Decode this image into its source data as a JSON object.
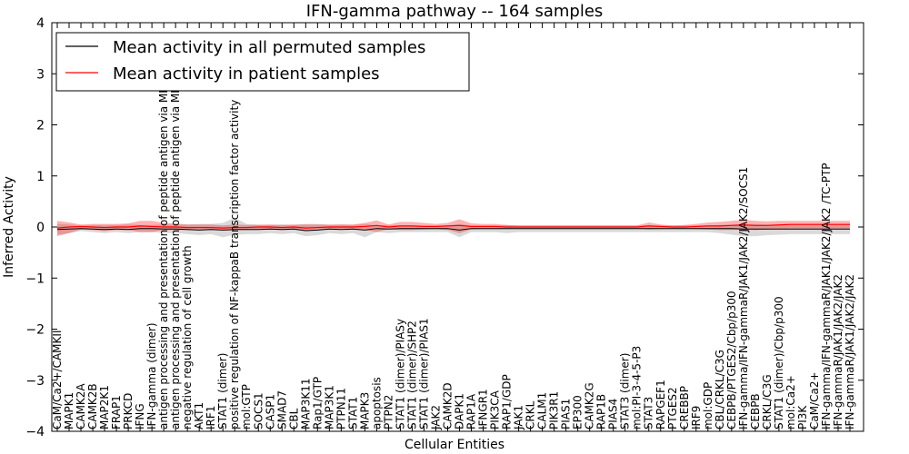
{
  "chart_data": {
    "type": "line",
    "title": "IFN-gamma pathway -- 164 samples",
    "xlabel": "Cellular Entities",
    "ylabel": "Inferred Activity",
    "ylim": [
      -4,
      4
    ],
    "yticks": [
      4,
      3,
      2,
      1,
      0,
      -1,
      -2,
      -3,
      -4
    ],
    "ytick_labels": [
      "4",
      "3",
      "2",
      "1",
      "0",
      "−1",
      "−2",
      "−3",
      "−4"
    ],
    "legend": {
      "placement": "top-left",
      "entries": [
        {
          "label": "Mean activity in all permuted samples",
          "color": "#000000"
        },
        {
          "label": "Mean activity in patient samples",
          "color": "#ff0000"
        }
      ]
    },
    "categories": [
      "CaM/Ca2+/CAMKII",
      "MAPK1",
      "CAMK2A",
      "CAMK2B",
      "MAP2K1",
      "FRAP1",
      "PRKCD",
      "IFNG",
      "IFN-gamma (dimer)",
      "antigen processing and presentation of peptide antigen via MHC class I",
      "antigen processing and presentation of peptide antigen via MHC class II",
      "negative regulation of cell growth",
      "AKT1",
      "IRF1",
      "STAT1 (dimer)",
      "positive regulation of NF-kappaB transcription factor activity",
      "mol:GTP",
      "SOCS1",
      "CASP1",
      "SMAD7",
      "CBL",
      "MAP3K11",
      "Rap1/GTP",
      "MAP3K1",
      "PTPN11",
      "STAT1",
      "MAPK3",
      "apoptosis",
      "PTPN2",
      "STAT1 (dimer)/PIASy",
      "STAT1 (dimer)/SHP2",
      "STAT1 (dimer)/PIAS1",
      "JAK2",
      "CAMK2D",
      "DAPK1",
      "RAP1A",
      "IFNGR1",
      "PIK3CA",
      "RAP1/GDP",
      "JAK1",
      "CRKL",
      "CALM1",
      "PIK3R1",
      "PIAS1",
      "EP300",
      "CAMK2G",
      "RAP1B",
      "PIAS4",
      "STAT3 (dimer)",
      "mol:PI-3-4-5-P3",
      "STAT3",
      "RAPGEF1",
      "PTGES2",
      "CREBBP",
      "IRF9",
      "mol:GDP",
      "CBL/CRKL/C3G",
      "CEBPB/PTGES2/Cbp/p300",
      "IFN-gamma/IFN-gammaR/JAK1/JAK2/JAK2/SOCS1",
      "CEBPB",
      "CRKL/C3G",
      "STAT1 (dimer)/Cbp/p300",
      "mol:Ca2+",
      "PI3K",
      "CaM/Ca2+",
      "IFN-gamma/IFN-gammaR/JAK1/JAK2/JAK2  /TC-PTP",
      "IFN-gammaR/JAK1/JAK2/JAK2",
      "IFN-gammaR/JAK1/JAK2/JAK2"
    ],
    "series": [
      {
        "name": "Mean activity in all permuted samples",
        "color": "#000000",
        "values": [
          -0.05,
          -0.04,
          -0.03,
          -0.04,
          -0.05,
          -0.04,
          -0.05,
          -0.03,
          -0.03,
          -0.04,
          -0.04,
          -0.05,
          -0.06,
          -0.05,
          -0.06,
          -0.05,
          -0.05,
          -0.05,
          -0.04,
          -0.05,
          -0.04,
          -0.07,
          -0.06,
          -0.04,
          -0.05,
          -0.04,
          -0.06,
          -0.03,
          -0.04,
          -0.03,
          -0.03,
          -0.03,
          -0.03,
          -0.03,
          -0.06,
          -0.03,
          -0.03,
          -0.03,
          -0.03,
          -0.03,
          -0.03,
          -0.03,
          -0.03,
          -0.03,
          -0.03,
          -0.03,
          -0.03,
          -0.03,
          -0.03,
          -0.03,
          -0.03,
          -0.03,
          -0.03,
          -0.03,
          -0.03,
          -0.03,
          -0.03,
          -0.03,
          -0.04,
          -0.04,
          -0.04,
          -0.04,
          -0.04,
          -0.04,
          -0.04,
          -0.04,
          -0.04,
          -0.04
        ],
        "band_low": [
          -0.15,
          -0.12,
          -0.08,
          -0.1,
          -0.12,
          -0.1,
          -0.12,
          -0.1,
          -0.1,
          -0.12,
          -0.12,
          -0.14,
          -0.16,
          -0.14,
          -0.2,
          -0.15,
          -0.14,
          -0.14,
          -0.12,
          -0.14,
          -0.12,
          -0.18,
          -0.16,
          -0.12,
          -0.14,
          -0.12,
          -0.2,
          -0.1,
          -0.12,
          -0.1,
          -0.1,
          -0.1,
          -0.1,
          -0.1,
          -0.2,
          -0.1,
          -0.1,
          -0.1,
          -0.12,
          -0.1,
          -0.1,
          -0.1,
          -0.1,
          -0.1,
          -0.1,
          -0.1,
          -0.1,
          -0.1,
          -0.1,
          -0.1,
          -0.1,
          -0.1,
          -0.1,
          -0.1,
          -0.1,
          -0.1,
          -0.12,
          -0.15,
          -0.18,
          -0.18,
          -0.16,
          -0.15,
          -0.14,
          -0.14,
          -0.14,
          -0.14,
          -0.14,
          -0.14
        ],
        "band_high": [
          0.06,
          0.05,
          0.03,
          0.04,
          0.04,
          0.04,
          0.05,
          0.04,
          0.04,
          0.05,
          0.05,
          0.05,
          0.06,
          0.06,
          0.08,
          0.18,
          0.06,
          0.05,
          0.04,
          0.05,
          0.04,
          0.06,
          0.06,
          0.04,
          0.05,
          0.04,
          0.06,
          0.03,
          0.04,
          0.03,
          0.03,
          0.03,
          0.03,
          0.03,
          0.06,
          0.03,
          0.03,
          0.03,
          0.04,
          0.03,
          0.03,
          0.03,
          0.03,
          0.03,
          0.03,
          0.03,
          0.03,
          0.03,
          0.03,
          0.03,
          0.03,
          0.03,
          0.03,
          0.03,
          0.03,
          0.03,
          0.04,
          0.05,
          0.06,
          0.06,
          0.05,
          0.05,
          0.05,
          0.05,
          0.05,
          0.05,
          0.05,
          0.05
        ]
      },
      {
        "name": "Mean activity in patient samples",
        "color": "#ff0000",
        "values": [
          -0.02,
          0.0,
          0.01,
          0.0,
          -0.01,
          0.0,
          0.0,
          0.02,
          0.01,
          0.0,
          0.0,
          -0.01,
          -0.01,
          -0.01,
          -0.02,
          -0.01,
          -0.01,
          0.0,
          0.0,
          -0.01,
          0.0,
          -0.02,
          -0.01,
          0.0,
          0.0,
          0.0,
          0.01,
          0.03,
          0.0,
          0.02,
          0.02,
          0.01,
          0.01,
          0.02,
          0.03,
          0.01,
          0.01,
          0.01,
          0.0,
          0.0,
          0.0,
          0.0,
          0.0,
          0.0,
          0.0,
          0.0,
          0.0,
          0.0,
          0.0,
          0.0,
          0.02,
          0.01,
          0.0,
          0.0,
          0.01,
          0.02,
          0.02,
          0.03,
          0.04,
          0.03,
          0.03,
          0.04,
          0.05,
          0.05,
          0.05,
          0.05,
          0.05,
          0.05
        ],
        "band_low": [
          -0.18,
          -0.12,
          -0.05,
          -0.06,
          -0.08,
          -0.06,
          -0.06,
          -0.1,
          -0.1,
          -0.06,
          -0.06,
          -0.06,
          -0.06,
          -0.06,
          -0.06,
          -0.06,
          -0.06,
          -0.04,
          -0.05,
          -0.06,
          -0.05,
          -0.08,
          -0.06,
          -0.04,
          -0.04,
          -0.04,
          -0.06,
          -0.1,
          -0.04,
          -0.06,
          -0.06,
          -0.05,
          -0.04,
          -0.06,
          -0.12,
          -0.05,
          -0.04,
          -0.04,
          -0.04,
          -0.03,
          -0.03,
          -0.03,
          -0.03,
          -0.03,
          -0.03,
          -0.03,
          -0.03,
          -0.03,
          -0.03,
          -0.03,
          -0.05,
          -0.04,
          -0.03,
          -0.03,
          -0.04,
          -0.05,
          -0.06,
          -0.06,
          -0.05,
          -0.06,
          -0.05,
          -0.04,
          -0.03,
          -0.03,
          -0.03,
          -0.03,
          -0.03,
          -0.03
        ],
        "band_high": [
          0.12,
          0.09,
          0.05,
          0.06,
          0.06,
          0.06,
          0.07,
          0.12,
          0.12,
          0.08,
          0.07,
          0.05,
          0.05,
          0.05,
          0.03,
          0.05,
          0.04,
          0.04,
          0.05,
          0.04,
          0.05,
          0.05,
          0.05,
          0.05,
          0.05,
          0.05,
          0.08,
          0.13,
          0.05,
          0.1,
          0.1,
          0.08,
          0.06,
          0.08,
          0.15,
          0.07,
          0.06,
          0.06,
          0.04,
          0.03,
          0.03,
          0.03,
          0.03,
          0.03,
          0.03,
          0.03,
          0.03,
          0.03,
          0.03,
          0.03,
          0.09,
          0.05,
          0.03,
          0.04,
          0.06,
          0.09,
          0.1,
          0.12,
          0.14,
          0.12,
          0.11,
          0.12,
          0.12,
          0.12,
          0.12,
          0.12,
          0.12,
          0.12
        ]
      }
    ]
  }
}
